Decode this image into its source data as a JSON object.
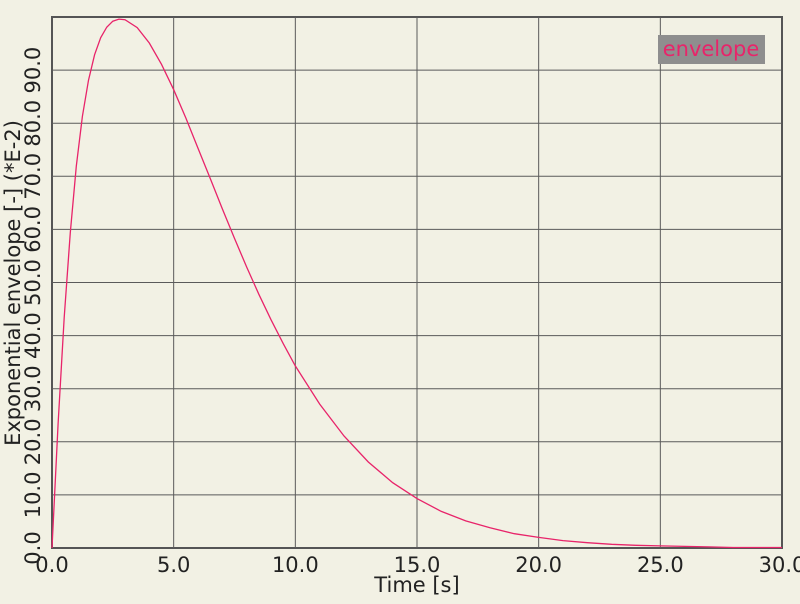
{
  "chart_data": {
    "type": "line",
    "xlabel": "Time [s]",
    "ylabel": "Exponential envelope [-] (*E-2)",
    "xlim": [
      0,
      30
    ],
    "ylim": [
      0,
      100
    ],
    "x_ticks": [
      "0.0",
      "5.0",
      "10.0",
      "15.0",
      "20.0",
      "25.0",
      "30.0"
    ],
    "y_ticks": [
      "0.0",
      "10.0",
      "20.0",
      "30.0",
      "40.0",
      "50.0",
      "60.0",
      "70.0",
      "80.0",
      "90.0"
    ],
    "grid": true,
    "legend_position": "top-right",
    "series": [
      {
        "name": "envelope",
        "color": "#e8246a",
        "x": [
          0,
          0.25,
          0.5,
          0.75,
          1,
          1.25,
          1.5,
          1.75,
          2,
          2.25,
          2.5,
          2.75,
          3,
          3.5,
          4,
          4.5,
          5,
          5.5,
          6,
          6.5,
          7,
          7.5,
          8,
          8.5,
          9,
          9.5,
          10,
          11,
          12,
          13,
          14,
          15,
          16,
          17,
          18,
          19,
          20,
          21,
          22,
          23,
          24,
          25,
          26,
          27,
          28,
          29,
          30
        ],
        "y": [
          0,
          23.4,
          43.4,
          59.4,
          71.9,
          81.3,
          88.1,
          92.9,
          96.1,
          98.1,
          99.2,
          99.6,
          99.5,
          98.0,
          95.1,
          91.1,
          86.3,
          81.0,
          75.3,
          69.6,
          63.9,
          58.3,
          52.9,
          47.8,
          43.0,
          38.5,
          34.3,
          27.1,
          21.1,
          16.2,
          12.3,
          9.3,
          6.9,
          5.1,
          3.8,
          2.7,
          2.0,
          1.4,
          1.0,
          0.7,
          0.5,
          0.4,
          0.3,
          0.2,
          0.1,
          0.1,
          0.1
        ]
      }
    ]
  }
}
